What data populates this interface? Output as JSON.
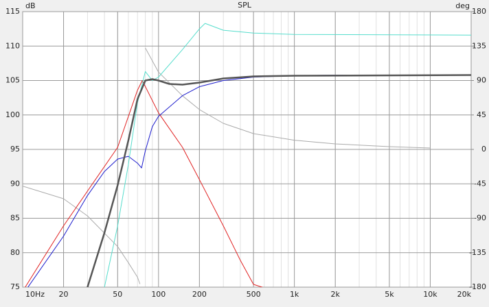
{
  "chart_data": {
    "type": "line",
    "title": "SPL",
    "ylabel": "dB",
    "y2label": "deg",
    "log_x": true,
    "grid": true,
    "xlim": [
      10,
      20000
    ],
    "ylim": [
      75,
      115
    ],
    "y2lim": [
      -180,
      180
    ],
    "xticks": [
      {
        "value": 10,
        "label": "10Hz"
      },
      20,
      50,
      100,
      200,
      500,
      {
        "value": 1000,
        "label": "1k"
      },
      {
        "value": 2000,
        "label": "2k"
      },
      {
        "value": 5000,
        "label": "5k"
      },
      {
        "value": 10000,
        "label": "10k"
      },
      {
        "value": 20000,
        "label": "20k"
      }
    ],
    "yticks": [
      75,
      80,
      85,
      90,
      95,
      100,
      105,
      110,
      115
    ],
    "y2ticks": [
      -180,
      -135,
      -90,
      -45,
      0,
      45,
      90,
      135,
      180
    ],
    "series": [
      {
        "color": "#aaaaaa",
        "width": 1,
        "axis": "y2",
        "x": [
          10,
          20,
          30,
          50,
          60,
          70,
          73,
          73.5,
          80,
          100,
          150,
          200,
          300,
          500,
          1000,
          2000,
          5000,
          10000
        ],
        "values": [
          -48,
          -64.5,
          -87,
          -127,
          -148,
          -167,
          -176,
          null,
          132.5,
          101,
          70,
          52,
          34,
          20.6,
          12,
          7.2,
          3.6,
          1.8
        ]
      },
      {
        "color": "#e02020",
        "width": 1,
        "x": [
          10,
          20,
          50,
          70,
          76,
          100,
          150,
          200,
          300,
          400,
          500,
          600
        ],
        "values": [
          74.4,
          83.9,
          95.3,
          103.6,
          105,
          100.3,
          95.3,
          90.6,
          83.9,
          78.9,
          75.4,
          74.9
        ]
      },
      {
        "color": "#1a1acc",
        "width": 1,
        "x": [
          10,
          20,
          30,
          40,
          50,
          60,
          70,
          75,
          80,
          90,
          100,
          150,
          200,
          300,
          500,
          1000,
          2000,
          20000
        ],
        "values": [
          73.9,
          82.4,
          88.3,
          91.8,
          93.6,
          94,
          93,
          92.3,
          94.8,
          98.3,
          99.8,
          102.8,
          104.1,
          105,
          105.5,
          105.7,
          105.8,
          105.8
        ]
      },
      {
        "color": "#55ddcc",
        "width": 1,
        "x": [
          40,
          50,
          60,
          70,
          80,
          90,
          100,
          150,
          200,
          220,
          300,
          500,
          1000,
          20000
        ],
        "values": [
          75,
          83.9,
          92.8,
          101.8,
          106.3,
          105,
          105.5,
          109.5,
          112.5,
          113.3,
          112.3,
          111.9,
          111.7,
          111.6
        ]
      },
      {
        "color": "#555555",
        "width": 2.5,
        "x": [
          30,
          40,
          50,
          60,
          70,
          80,
          90,
          100,
          120,
          150,
          200,
          300,
          500,
          1000,
          20000
        ],
        "values": [
          75,
          82.9,
          89.8,
          96.3,
          102.3,
          105,
          105.2,
          105,
          104.5,
          104.4,
          104.7,
          105.3,
          105.6,
          105.7,
          105.8
        ]
      }
    ]
  }
}
